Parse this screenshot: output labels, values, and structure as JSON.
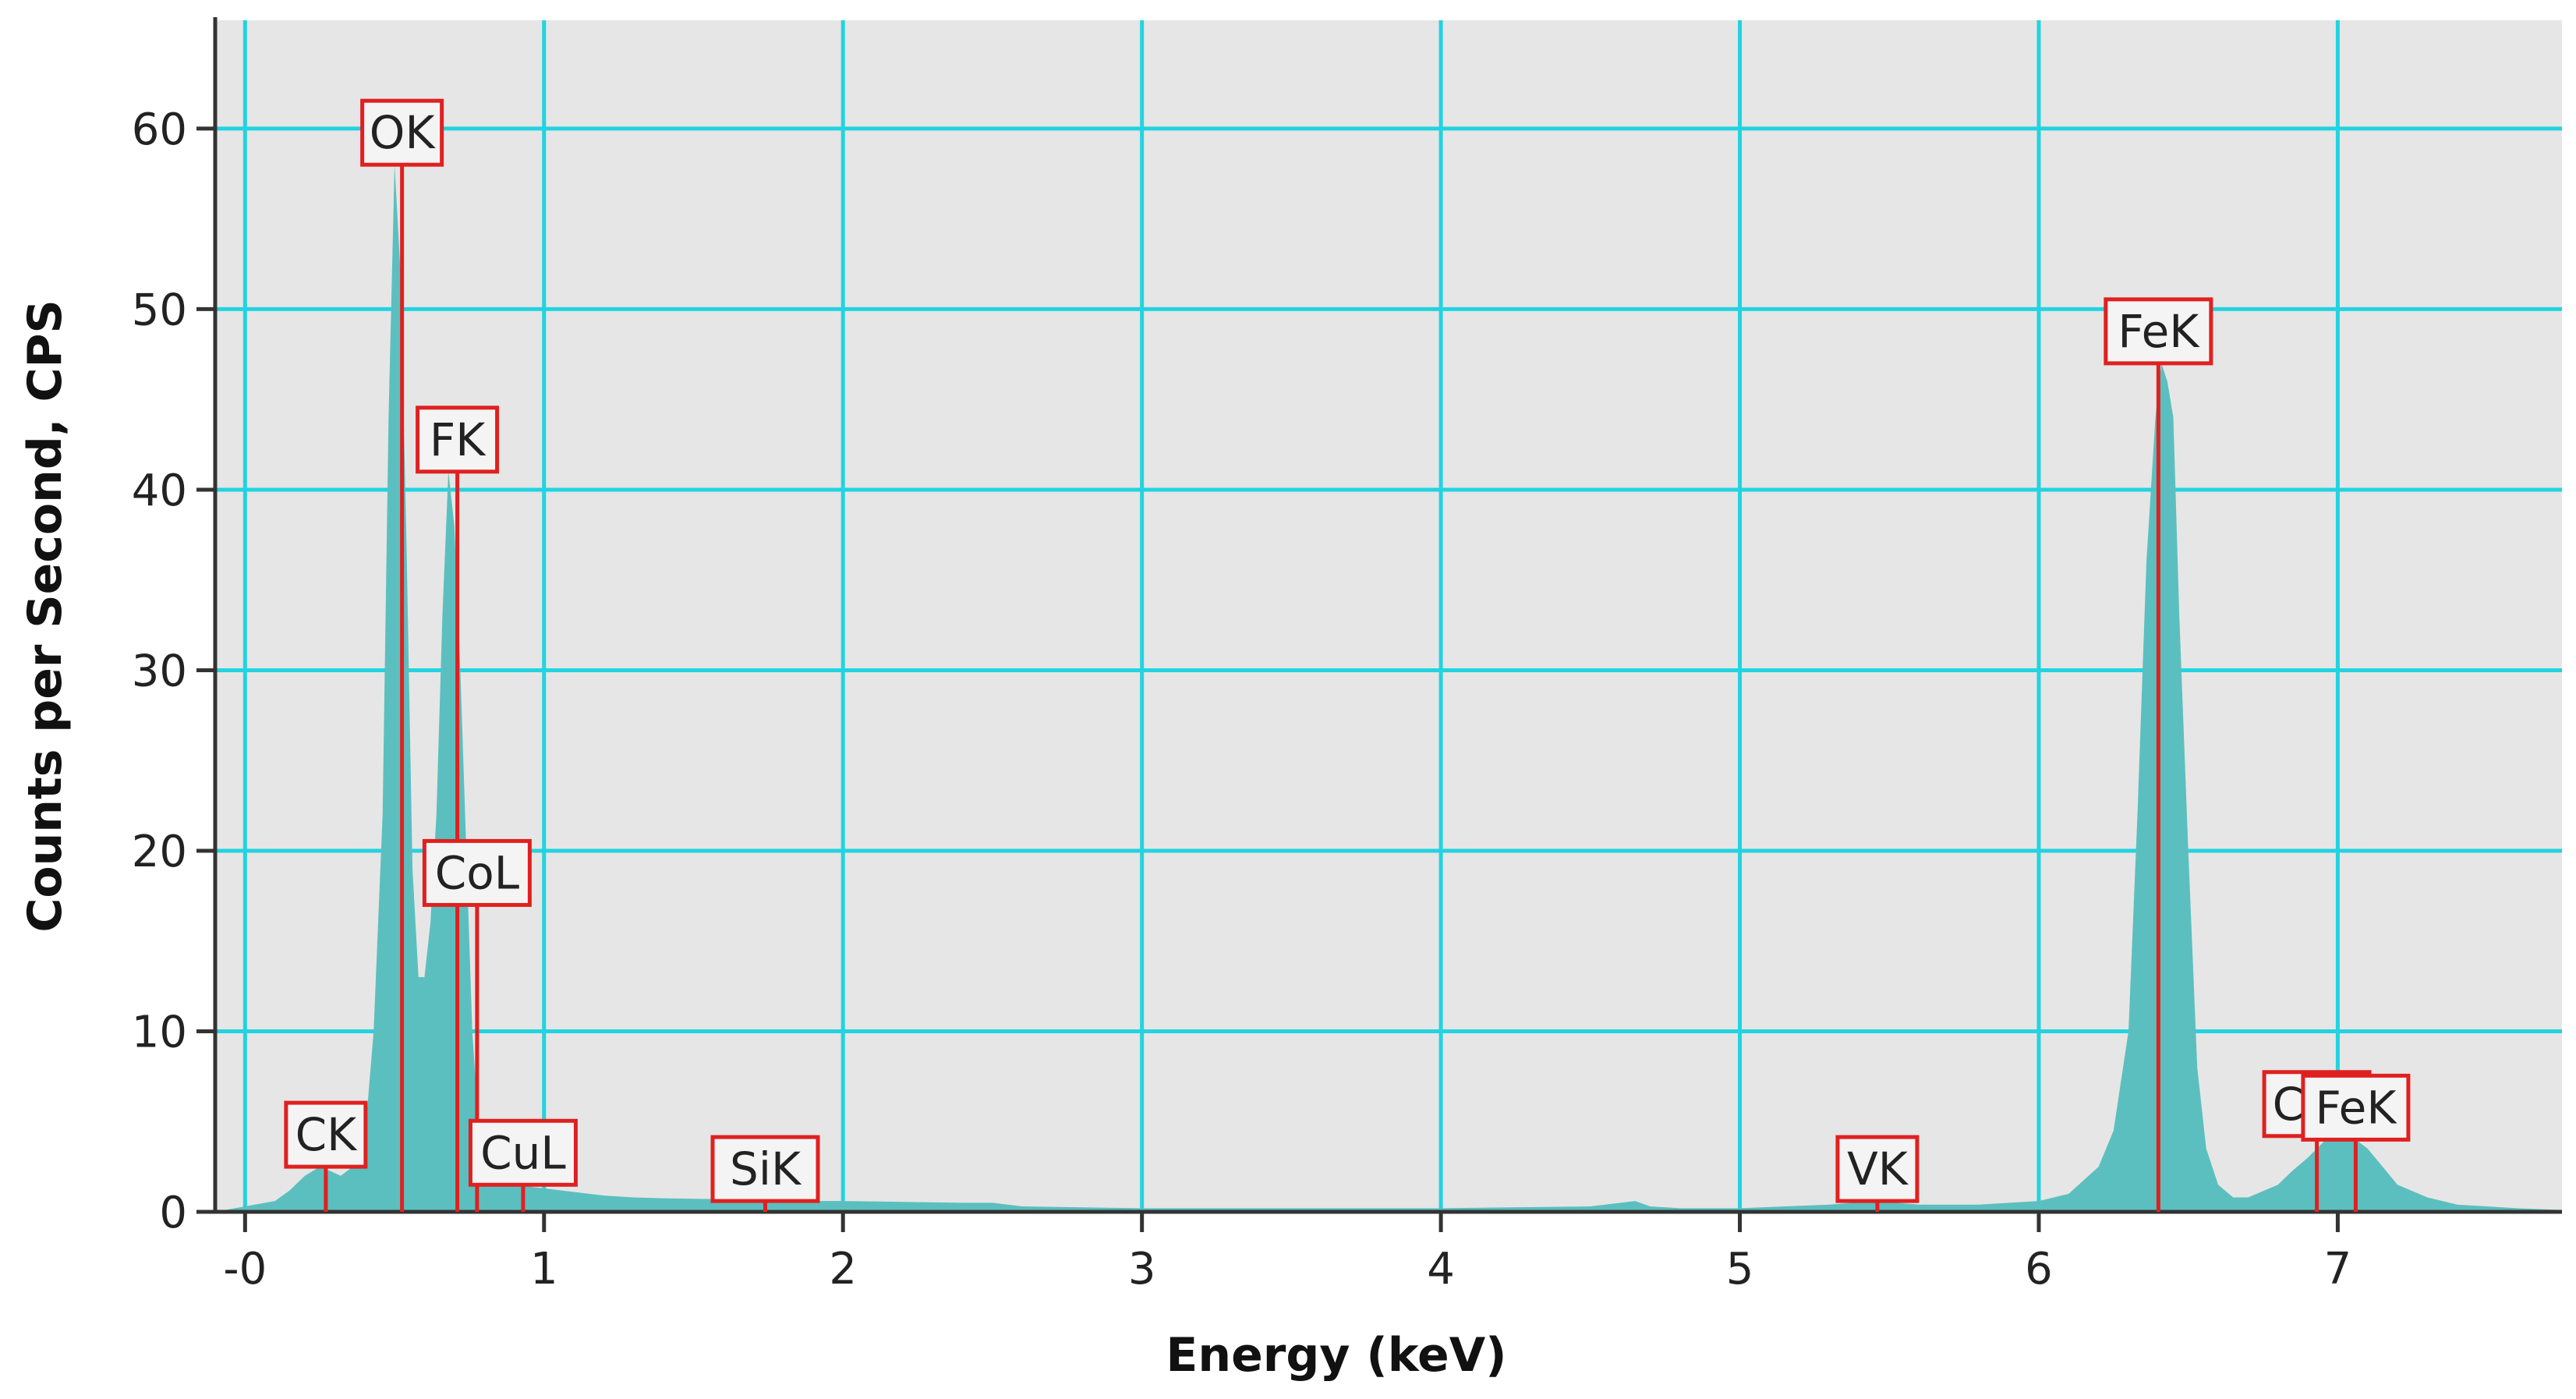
{
  "chart_data": {
    "type": "area",
    "title": "",
    "xlabel": "Energy (keV)",
    "ylabel": "Counts per Second, CPS",
    "xlim": [
      -0.1,
      7.75
    ],
    "ylim": [
      0,
      66
    ],
    "grid": true,
    "x_ticks": [
      "-0",
      "1",
      "2",
      "3",
      "4",
      "5",
      "6",
      "7"
    ],
    "x_tick_values": [
      0,
      1,
      2,
      3,
      4,
      5,
      6,
      7
    ],
    "y_ticks": [
      "0",
      "10",
      "20",
      "30",
      "40",
      "50",
      "60"
    ],
    "y_tick_values": [
      0,
      10,
      20,
      30,
      40,
      50,
      60
    ],
    "colors": {
      "plot_background": "#e6e6e6",
      "grid": "#22d3e0",
      "spectrum": "#5cbfbf",
      "marker": "#e02020",
      "label_border": "#e02020",
      "label_fill": "#f4f4f4"
    },
    "series": [
      {
        "x": [
          -0.1,
          0.0,
          0.1,
          0.15,
          0.2,
          0.25,
          0.28,
          0.32,
          0.36,
          0.4,
          0.43,
          0.46,
          0.48,
          0.5,
          0.52,
          0.54,
          0.56,
          0.58,
          0.6,
          0.62,
          0.64,
          0.66,
          0.68,
          0.7,
          0.72,
          0.74,
          0.76,
          0.78,
          0.8,
          0.85,
          0.9,
          0.95,
          1.0,
          1.1,
          1.2,
          1.3,
          1.4,
          1.6,
          1.8,
          2.0,
          2.2,
          2.4,
          2.5,
          2.6,
          3.0,
          3.5,
          4.0,
          4.5,
          4.65,
          4.7,
          4.8,
          5.0,
          5.3,
          5.45,
          5.6,
          5.8,
          6.0,
          6.1,
          6.2,
          6.25,
          6.3,
          6.33,
          6.36,
          6.39,
          6.41,
          6.43,
          6.45,
          6.47,
          6.5,
          6.53,
          6.56,
          6.6,
          6.65,
          6.7,
          6.8,
          6.85,
          6.9,
          6.93,
          6.96,
          7.0,
          7.03,
          7.06,
          7.1,
          7.15,
          7.2,
          7.3,
          7.4,
          7.5,
          7.6,
          7.75
        ],
        "y": [
          0,
          0.3,
          0.6,
          1.2,
          2.0,
          2.5,
          2.3,
          2.0,
          2.5,
          4.0,
          10.0,
          22.0,
          44.0,
          58.0,
          52.0,
          37.0,
          19.0,
          13.0,
          13.0,
          16.0,
          22.0,
          33.0,
          41.0,
          38.0,
          30.0,
          20.0,
          10.0,
          5.0,
          3.0,
          2.0,
          1.6,
          1.4,
          1.3,
          1.1,
          0.9,
          0.8,
          0.75,
          0.7,
          0.6,
          0.6,
          0.55,
          0.5,
          0.5,
          0.3,
          0.2,
          0.2,
          0.2,
          0.3,
          0.6,
          0.3,
          0.2,
          0.2,
          0.4,
          0.6,
          0.4,
          0.4,
          0.6,
          1.0,
          2.5,
          4.5,
          10.0,
          22.0,
          36.0,
          44.0,
          47.0,
          46.0,
          44.0,
          33.0,
          20.0,
          8.0,
          3.5,
          1.5,
          0.8,
          0.8,
          1.5,
          2.3,
          3.0,
          3.5,
          4.0,
          4.3,
          4.2,
          4.0,
          3.5,
          2.5,
          1.5,
          0.8,
          0.4,
          0.3,
          0.2,
          0.1
        ]
      }
    ],
    "annotations": [
      {
        "label": "CK",
        "x": 0.27,
        "y": 2.5
      },
      {
        "label": "OK",
        "x": 0.525,
        "y": 58
      },
      {
        "label": "FK",
        "x": 0.71,
        "y": 41
      },
      {
        "label": "CoL",
        "x": 0.776,
        "y": 17
      },
      {
        "label": "CuL",
        "x": 0.93,
        "y": 1.5
      },
      {
        "label": "SiK",
        "x": 1.74,
        "y": 0.6
      },
      {
        "label": "VK",
        "x": 5.46,
        "y": 0.6
      },
      {
        "label": "FeK",
        "x": 6.4,
        "y": 47
      },
      {
        "label": "CoK",
        "x": 6.93,
        "y": 4.2
      },
      {
        "label": "FeK",
        "x": 7.06,
        "y": 4.0
      }
    ]
  }
}
